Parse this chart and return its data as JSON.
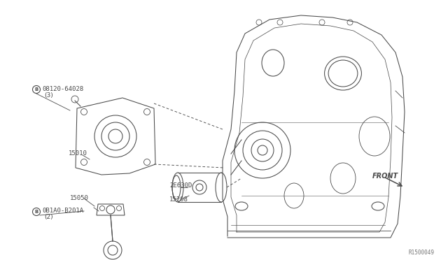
{
  "bg_color": "#ffffff",
  "line_color": "#4a4a4a",
  "ref_code": "R1500049",
  "labels": {
    "part1": "08120-64028",
    "part1_qty": "(3)",
    "part2": "15010",
    "part3": "15050",
    "part4": "0B1A0-B201A",
    "part4_qty": "(2)",
    "part5": "2E630D",
    "part6": "15208",
    "front": "FRONT"
  },
  "font_size": 6.5,
  "lw": 0.75
}
